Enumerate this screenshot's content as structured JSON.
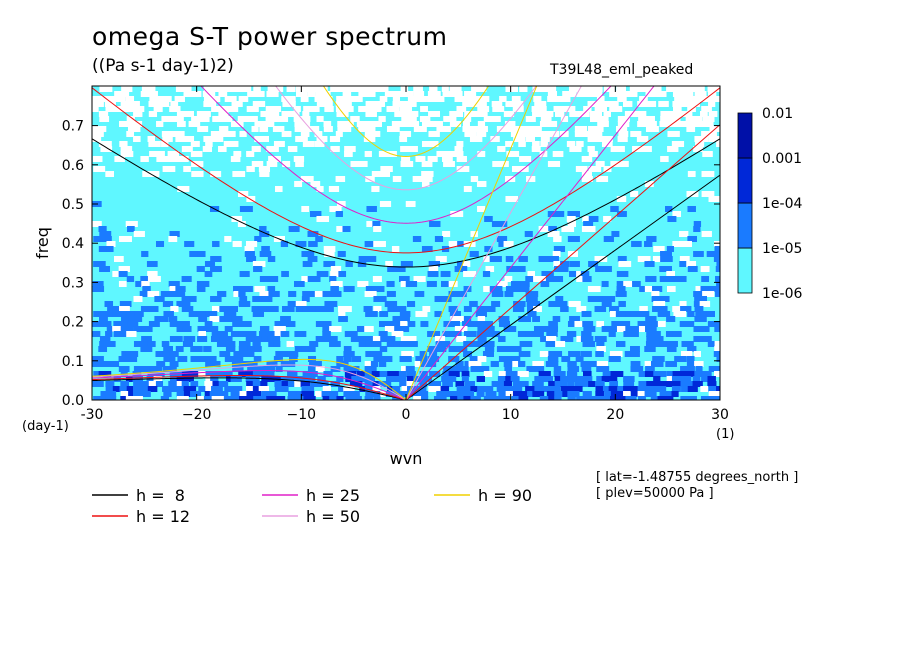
{
  "title": "omega S-T power spectrum",
  "units": "((Pa s-1 day-1)2)",
  "run_name": "T39L48_eml_peaked",
  "info_lines": [
    "[ lat=-1.48755 degrees_north ]",
    "[ plev=50000 Pa ]"
  ],
  "chart_data": {
    "type": "heatmap",
    "xlabel": "wvn",
    "ylabel": "freq",
    "x_unit_label": "(1)",
    "y_unit_label": "(day-1)",
    "xlim": [
      -30,
      30
    ],
    "ylim": [
      0,
      0.79
    ],
    "xticks": [
      -30,
      -20,
      -10,
      0,
      10,
      20,
      30
    ],
    "xtick_labels": [
      "-30",
      "−20",
      "−10",
      "0",
      "10",
      "20",
      "30"
    ],
    "yticks": [
      0,
      0.1,
      0.2,
      0.3,
      0.4,
      0.5,
      0.6,
      0.7
    ],
    "ytick_labels": [
      "0.0",
      "0.1",
      "0.2",
      "0.3",
      "0.4",
      "0.5",
      "0.6",
      "0.7"
    ],
    "colorbar": {
      "levels": [
        "1e-06",
        "1e-05",
        "1e-04",
        "0.001",
        "0.01"
      ],
      "colors": [
        "#5ff7ff",
        "#1a7bff",
        "#0028d8",
        "#0010a8",
        "#4a10b8"
      ]
    },
    "background_colors": {
      "low": "#ffffff",
      "fill": "#5ff7ff",
      "mid": "#1a7bff",
      "high": "#0028d8"
    },
    "dispersion_curves": [
      {
        "label": "h =  8",
        "h": 8,
        "color": "#000000"
      },
      {
        "label": "h = 12",
        "h": 12,
        "color": "#ee1111"
      },
      {
        "label": "h = 25",
        "h": 25,
        "color": "#e020c8"
      },
      {
        "label": "h = 50",
        "h": 50,
        "color": "#e8a0e0"
      },
      {
        "label": "h = 90",
        "h": 90,
        "color": "#f0d000"
      }
    ]
  }
}
